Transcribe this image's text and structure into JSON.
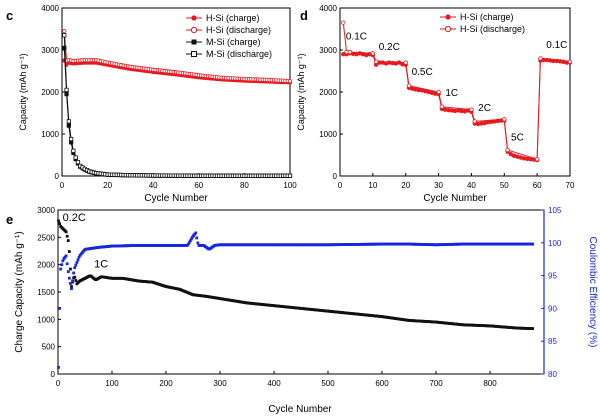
{
  "colors": {
    "red": "#e8191f",
    "black": "#111111",
    "blue": "#1627e0",
    "grid": "none"
  },
  "chart_data": [
    {
      "panel_label": "c",
      "type": "scatter",
      "title": "",
      "xlabel": "Cycle Number",
      "ylabel": "Capacity (mAh g⁻¹)",
      "xlim": [
        0,
        100
      ],
      "ylim": [
        0,
        4000
      ],
      "xticks": [
        0,
        20,
        40,
        60,
        80,
        100
      ],
      "yticks": [
        0,
        1000,
        2000,
        3000,
        4000
      ],
      "legend": {
        "position": "top-right"
      },
      "series": [
        {
          "name": "H-Si (charge)",
          "color": "#e8191f",
          "marker": "filled-circle",
          "x": [
            1,
            2,
            3,
            5,
            10,
            15,
            20,
            25,
            30,
            40,
            50,
            60,
            70,
            80,
            90,
            100
          ],
          "y": [
            2750,
            2650,
            2700,
            2680,
            2700,
            2700,
            2650,
            2600,
            2550,
            2480,
            2420,
            2350,
            2300,
            2270,
            2250,
            2230
          ]
        },
        {
          "name": "H-Si (discharge)",
          "color": "#e8191f",
          "marker": "open-circle",
          "x": [
            1,
            2,
            3,
            5,
            10,
            15,
            20,
            25,
            30,
            40,
            50,
            60,
            70,
            80,
            90,
            100
          ],
          "y": [
            3450,
            2750,
            2760,
            2740,
            2760,
            2760,
            2700,
            2650,
            2600,
            2530,
            2470,
            2400,
            2340,
            2310,
            2290,
            2260
          ]
        },
        {
          "name": "M-Si (charge)",
          "color": "#111111",
          "marker": "filled-square",
          "x": [
            1,
            2,
            3,
            4,
            5,
            6,
            7,
            8,
            10,
            12,
            15,
            20,
            30,
            40,
            60,
            80,
            100
          ],
          "y": [
            3050,
            1950,
            1200,
            800,
            550,
            400,
            300,
            220,
            150,
            100,
            60,
            30,
            15,
            10,
            5,
            5,
            5
          ]
        },
        {
          "name": "M-Si (discharge)",
          "color": "#111111",
          "marker": "open-square",
          "x": [
            1,
            2,
            3,
            4,
            5,
            6,
            7,
            8,
            10,
            12,
            15,
            20,
            30,
            40,
            60,
            80,
            100
          ],
          "y": [
            3350,
            2050,
            1300,
            880,
            600,
            440,
            330,
            240,
            170,
            110,
            70,
            35,
            18,
            12,
            6,
            6,
            6
          ]
        }
      ]
    },
    {
      "panel_label": "d",
      "type": "scatter",
      "title": "",
      "xlabel": "Cycle Number",
      "ylabel": "Capacity (mAh g⁻¹)",
      "xlim": [
        0,
        70
      ],
      "ylim": [
        0,
        4000
      ],
      "xticks": [
        0,
        10,
        20,
        30,
        40,
        50,
        60,
        70
      ],
      "yticks": [
        0,
        1000,
        2000,
        3000,
        4000
      ],
      "legend": {
        "position": "top-right"
      },
      "annotations": [
        {
          "text": "0.1C",
          "x": 5,
          "y": 3250
        },
        {
          "text": "0.2C",
          "x": 15,
          "y": 3000
        },
        {
          "text": "0.5C",
          "x": 25,
          "y": 2400
        },
        {
          "text": "1C",
          "x": 34,
          "y": 1900
        },
        {
          "text": "2C",
          "x": 44,
          "y": 1550
        },
        {
          "text": "5C",
          "x": 54,
          "y": 850
        },
        {
          "text": "0.1C",
          "x": 66,
          "y": 3050
        }
      ],
      "series": [
        {
          "name": "H-Si (charge)",
          "color": "#e8191f",
          "marker": "filled-circle",
          "x": [
            1,
            2,
            3,
            4,
            5,
            6,
            7,
            8,
            9,
            10,
            11,
            12,
            13,
            14,
            15,
            16,
            17,
            18,
            19,
            20,
            21,
            22,
            23,
            24,
            25,
            26,
            27,
            28,
            29,
            30,
            31,
            32,
            33,
            34,
            35,
            36,
            37,
            38,
            39,
            40,
            41,
            42,
            43,
            44,
            45,
            46,
            47,
            48,
            49,
            50,
            51,
            52,
            53,
            54,
            55,
            56,
            57,
            58,
            59,
            60,
            61,
            62,
            63,
            64,
            65,
            66,
            67,
            68,
            69,
            70
          ],
          "y": [
            2900,
            2900,
            2920,
            2910,
            2900,
            2920,
            2900,
            2880,
            2900,
            2880,
            2650,
            2700,
            2700,
            2680,
            2700,
            2690,
            2680,
            2700,
            2660,
            2650,
            2100,
            2080,
            2060,
            2050,
            2040,
            2020,
            2000,
            1980,
            1960,
            1950,
            1600,
            1580,
            1570,
            1560,
            1550,
            1560,
            1550,
            1540,
            1560,
            1530,
            1250,
            1240,
            1250,
            1260,
            1280,
            1290,
            1300,
            1310,
            1320,
            1320,
            580,
            520,
            480,
            460,
            440,
            420,
            410,
            400,
            390,
            380,
            2750,
            2760,
            2760,
            2750,
            2740,
            2740,
            2730,
            2720,
            2700,
            2700
          ]
        },
        {
          "name": "H-Si (discharge)",
          "color": "#e8191f",
          "marker": "open-circle",
          "x": [
            1,
            2,
            3,
            10,
            11,
            20,
            21,
            30,
            31,
            40,
            41,
            50,
            51,
            60,
            61,
            70
          ],
          "y": [
            3650,
            2950,
            2950,
            2920,
            2720,
            2700,
            2150,
            2000,
            1650,
            1580,
            1300,
            1350,
            620,
            400,
            2800,
            2720
          ]
        }
      ]
    },
    {
      "panel_label": "e",
      "type": "scatter",
      "title": "",
      "xlabel": "Cycle Number",
      "ylabel": "Charge Capacity (mAh g⁻¹)",
      "y2label": "Coulombic Efficiency (%)",
      "xlim": [
        0,
        900
      ],
      "ylim": [
        0,
        3000
      ],
      "y2lim": [
        80,
        105
      ],
      "xticks": [
        0,
        100,
        200,
        300,
        400,
        500,
        600,
        700,
        800
      ],
      "yticks": [
        0,
        500,
        1000,
        1500,
        2000,
        2500,
        3000
      ],
      "y2ticks": [
        80,
        85,
        90,
        95,
        100,
        105
      ],
      "annotations": [
        {
          "text": "0.2C",
          "x": 30,
          "y": 2800
        },
        {
          "text": "1C",
          "x": 80,
          "y": 1950
        }
      ],
      "series": [
        {
          "name": "",
          "axis": "left",
          "color": "#111111",
          "marker": "filled-square",
          "x": [
            1,
            5,
            10,
            15,
            20,
            25,
            30,
            35,
            40,
            50,
            60,
            70,
            80,
            100,
            120,
            150,
            175,
            200,
            225,
            250,
            275,
            300,
            350,
            400,
            450,
            500,
            550,
            600,
            650,
            700,
            750,
            800,
            850,
            880
          ],
          "y": [
            2800,
            2700,
            2650,
            2600,
            2400,
            1600,
            1800,
            1650,
            1700,
            1750,
            1800,
            1720,
            1780,
            1750,
            1750,
            1700,
            1680,
            1600,
            1550,
            1450,
            1420,
            1380,
            1300,
            1250,
            1200,
            1150,
            1100,
            1050,
            980,
            950,
            900,
            880,
            840,
            830
          ]
        },
        {
          "name": "",
          "axis": "right",
          "color": "#1627e0",
          "marker": "filled-square",
          "x": [
            1,
            3,
            5,
            8,
            10,
            15,
            20,
            25,
            30,
            40,
            50,
            75,
            100,
            150,
            200,
            240,
            250,
            255,
            260,
            270,
            280,
            290,
            300,
            350,
            400,
            500,
            600,
            650,
            700,
            750,
            800,
            850,
            880
          ],
          "y": [
            81,
            90,
            96,
            97,
            97.5,
            98,
            95,
            93,
            96,
            98,
            99,
            99.3,
            99.5,
            99.6,
            99.6,
            99.6,
            101,
            101.5,
            99.6,
            99.6,
            99,
            99.6,
            99.7,
            99.7,
            99.7,
            99.7,
            99.8,
            99.8,
            99.7,
            99.8,
            99.8,
            99.8,
            99.8
          ]
        }
      ]
    }
  ]
}
